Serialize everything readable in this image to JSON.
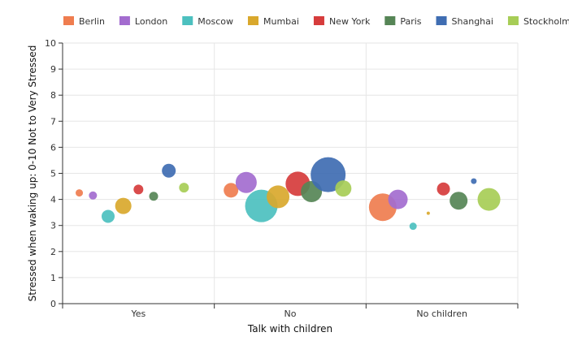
{
  "chart_data": {
    "type": "scatter",
    "subtype": "bubble-categorical",
    "title": "",
    "xlabel": "Talk with children",
    "ylabel": "Stressed when waking up: 0-10 Not to Very Stressed",
    "categories": [
      "Yes",
      "No",
      "No children"
    ],
    "ylim": [
      0,
      10
    ],
    "yticks": [
      0,
      1,
      2,
      3,
      4,
      5,
      6,
      7,
      8,
      9,
      10
    ],
    "grid": true,
    "legend_position": "top",
    "series": [
      {
        "name": "Berlin",
        "color": "#ef7d4f",
        "points": [
          {
            "category": "Yes",
            "y": 4.25,
            "size": 9
          },
          {
            "category": "No",
            "y": 4.35,
            "size": 18
          },
          {
            "category": "No children",
            "y": 3.7,
            "size": 34
          }
        ]
      },
      {
        "name": "London",
        "color": "#a36ccf",
        "points": [
          {
            "category": "Yes",
            "y": 4.15,
            "size": 10
          },
          {
            "category": "No",
            "y": 4.65,
            "size": 26
          },
          {
            "category": "No children",
            "y": 4.0,
            "size": 24
          }
        ]
      },
      {
        "name": "Moscow",
        "color": "#4cc0bf",
        "points": [
          {
            "category": "Yes",
            "y": 3.35,
            "size": 16
          },
          {
            "category": "No",
            "y": 3.75,
            "size": 40
          },
          {
            "category": "No children",
            "y": 2.97,
            "size": 9
          }
        ]
      },
      {
        "name": "Mumbai",
        "color": "#d9a82c",
        "points": [
          {
            "category": "Yes",
            "y": 3.75,
            "size": 20
          },
          {
            "category": "No",
            "y": 4.1,
            "size": 28
          },
          {
            "category": "No children",
            "y": 3.47,
            "size": 4
          }
        ]
      },
      {
        "name": "New York",
        "color": "#d63c3c",
        "points": [
          {
            "category": "Yes",
            "y": 4.38,
            "size": 12
          },
          {
            "category": "No",
            "y": 4.6,
            "size": 30
          },
          {
            "category": "No children",
            "y": 4.4,
            "size": 16
          }
        ]
      },
      {
        "name": "Paris",
        "color": "#568556",
        "points": [
          {
            "category": "Yes",
            "y": 4.12,
            "size": 11
          },
          {
            "category": "No",
            "y": 4.3,
            "size": 26
          },
          {
            "category": "No children",
            "y": 3.95,
            "size": 22
          }
        ]
      },
      {
        "name": "Shanghai",
        "color": "#3f6db2",
        "points": [
          {
            "category": "Yes",
            "y": 5.1,
            "size": 17
          },
          {
            "category": "No",
            "y": 4.95,
            "size": 43
          },
          {
            "category": "No children",
            "y": 4.7,
            "size": 7
          }
        ]
      },
      {
        "name": "Stockholm",
        "color": "#a7cd56",
        "points": [
          {
            "category": "Yes",
            "y": 4.45,
            "size": 12
          },
          {
            "category": "No",
            "y": 4.42,
            "size": 20
          },
          {
            "category": "No children",
            "y": 4.0,
            "size": 28
          }
        ]
      }
    ],
    "x_offsets": {
      "Yes": {
        "Berlin": -0.39,
        "London": -0.3,
        "Moscow": -0.2,
        "Mumbai": -0.1,
        "New York": 0.0,
        "Paris": 0.1,
        "Shanghai": 0.2,
        "Stockholm": 0.3
      },
      "No": {
        "Berlin": -0.39,
        "London": -0.29,
        "Moscow": -0.19,
        "Mumbai": -0.08,
        "New York": 0.05,
        "Paris": 0.14,
        "Shanghai": 0.25,
        "Stockholm": 0.35
      },
      "No children": {
        "Berlin": -0.39,
        "London": -0.29,
        "Moscow": -0.19,
        "Mumbai": -0.09,
        "New York": 0.01,
        "Paris": 0.11,
        "Shanghai": 0.21,
        "Stockholm": 0.31
      }
    }
  }
}
